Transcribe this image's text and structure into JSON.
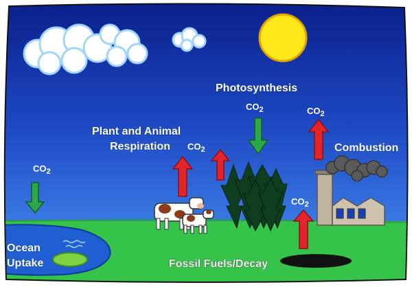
{
  "labels": {
    "photosynthesis": "Photosynthesis",
    "respiration_line1": "Plant and Animal",
    "respiration_line2": "Respiration",
    "combustion": "Combustion",
    "ocean_line1": "Ocean",
    "ocean_line2": "Uptake",
    "fossil": "Fossil Fuels/Decay"
  },
  "co2": {
    "main": "CO",
    "sub": "2"
  },
  "colors": {
    "sky_top": "#0a1f8a",
    "sky_bottom": "#2f6fe0",
    "grass": "#35c34a",
    "ocean": "#1f5fd1",
    "sun": "#ffe81a",
    "arrow_emit": "#e3242b",
    "arrow_absorb": "#2aa84a",
    "trees": "#0f3d20",
    "smoke": "#5a5a5a"
  }
}
